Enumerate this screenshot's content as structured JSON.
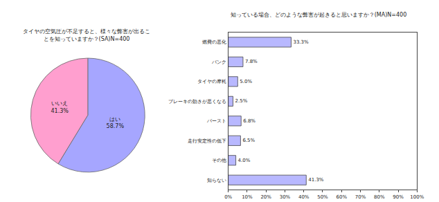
{
  "chart_data": [
    {
      "type": "pie",
      "title": "タイヤの空気圧が不足すると、様々な弊害が出ることを知っていますか？(SA)N=400",
      "categories": [
        "はい",
        "いいえ"
      ],
      "values": [
        58.7,
        41.3
      ],
      "value_labels": [
        "58.7%",
        "41.3%"
      ],
      "colors": [
        "#a6a6ff",
        "#ff9fcf"
      ],
      "data_labels": true
    },
    {
      "type": "bar",
      "orientation": "horizontal",
      "title": "知っている場合、どのような弊害が起きると思いますか？(MA)N=400",
      "categories": [
        "燃費の悪化",
        "パンク",
        "タイヤの摩耗",
        "ブレーキの効きが悪くなる",
        "バースト",
        "走行安定性の低下",
        "その他",
        "知らない"
      ],
      "values": [
        33.3,
        7.8,
        5.0,
        2.5,
        6.8,
        6.5,
        4.0,
        41.3
      ],
      "value_labels": [
        "33.3%",
        "7.8%",
        "5.0%",
        "2.5%",
        "6.8%",
        "6.5%",
        "4.0%",
        "41.3%"
      ],
      "color": "#b8b8ff",
      "data_labels": true,
      "xlim": [
        0,
        100
      ],
      "xticks": [
        {
          "value": 0,
          "label": "0%"
        },
        {
          "value": 10,
          "label": "10%"
        },
        {
          "value": 20,
          "label": "20%"
        },
        {
          "value": 30,
          "label": "30%"
        },
        {
          "value": 40,
          "label": "40%"
        },
        {
          "value": 50,
          "label": "50%"
        },
        {
          "value": 60,
          "label": "60%"
        },
        {
          "value": 70,
          "label": "70%"
        },
        {
          "value": 80,
          "label": "80%"
        },
        {
          "value": 90,
          "label": "90%"
        },
        {
          "value": 100,
          "label": "100%"
        }
      ]
    }
  ]
}
